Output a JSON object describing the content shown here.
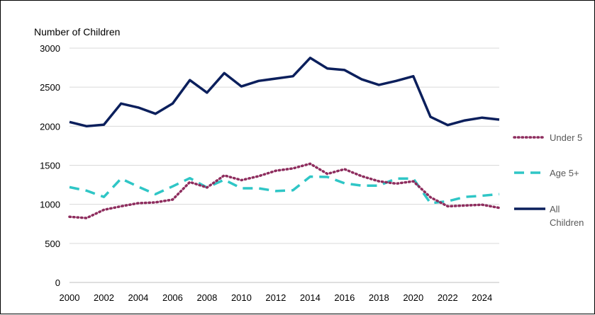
{
  "chart_data": {
    "type": "line",
    "title": "",
    "ylabel": "Number of Children",
    "xlabel": "",
    "ylim": [
      0,
      3000
    ],
    "xlim": [
      2000,
      2025
    ],
    "yticks": [
      0,
      500,
      1000,
      1500,
      2000,
      2500,
      3000
    ],
    "xticks": [
      2000,
      2002,
      2004,
      2006,
      2008,
      2010,
      2012,
      2014,
      2016,
      2018,
      2020,
      2022,
      2024
    ],
    "grid": "horizontal",
    "legend_position": "right",
    "x": [
      2000,
      2001,
      2002,
      2003,
      2004,
      2005,
      2006,
      2007,
      2008,
      2009,
      2010,
      2011,
      2012,
      2013,
      2014,
      2015,
      2016,
      2017,
      2018,
      2019,
      2020,
      2021,
      2022,
      2023,
      2024,
      2025
    ],
    "series": [
      {
        "name": "Under 5",
        "color": "#8e2d5e",
        "style": "dotted",
        "values": [
          840,
          825,
          930,
          975,
          1015,
          1025,
          1060,
          1285,
          1215,
          1370,
          1310,
          1360,
          1430,
          1460,
          1520,
          1390,
          1450,
          1360,
          1295,
          1265,
          1295,
          1090,
          975,
          985,
          995,
          955
        ]
      },
      {
        "name": "Age 5+",
        "color": "#2fc6c6",
        "style": "dashed",
        "values": [
          1220,
          1175,
          1095,
          1330,
          1225,
          1130,
          1230,
          1335,
          1215,
          1315,
          1205,
          1205,
          1170,
          1180,
          1355,
          1350,
          1270,
          1240,
          1240,
          1330,
          1330,
          1015,
          1040,
          1095,
          1110,
          1130
        ]
      },
      {
        "name": "All Children",
        "color": "#0b1f5c",
        "style": "solid",
        "values": [
          2055,
          2000,
          2020,
          2290,
          2240,
          2160,
          2290,
          2590,
          2430,
          2680,
          2510,
          2580,
          2610,
          2640,
          2875,
          2740,
          2720,
          2600,
          2530,
          2580,
          2640,
          2120,
          2015,
          2075,
          2110,
          2085
        ]
      }
    ]
  }
}
